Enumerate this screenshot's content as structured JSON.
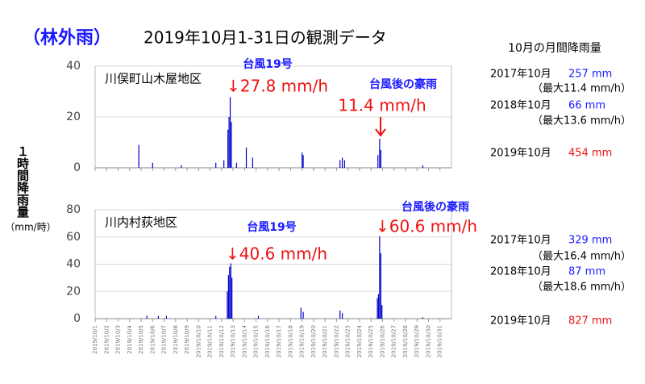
{
  "title": {
    "prefix": "（林外雨）",
    "text": "2019年10月1-31日の観測データ"
  },
  "y_axis_label": "１時間降雨量",
  "y_axis_unit": "（mm/時）",
  "chart_data": [
    {
      "type": "bar",
      "title": "川俣町山木屋地区",
      "color": "#0000cc",
      "x": [
        4.8,
        6.0,
        8.5,
        11.5,
        12.2,
        12.55,
        12.65,
        12.75,
        12.85,
        13.3,
        14.15,
        14.7,
        19.0,
        19.1,
        22.3,
        22.5,
        22.7,
        25.6,
        25.75,
        25.85,
        29.5
      ],
      "values": [
        9,
        2,
        1,
        2,
        3,
        15,
        20,
        27.8,
        18,
        2,
        8,
        4,
        6,
        5,
        3,
        4,
        3,
        5,
        11.4,
        7,
        1
      ],
      "xlim": [
        1,
        32
      ],
      "ylim": [
        0,
        40
      ],
      "yticks": [
        0,
        20,
        40
      ],
      "annotations": [
        {
          "text": "台風19号",
          "color": "#1a1aff"
        },
        {
          "text": "↓27.8 mm/h",
          "color": "#ee1111"
        },
        {
          "text": "台風後の豪雨",
          "color": "#1a1aff"
        },
        {
          "text": "11.4 mm/h",
          "color": "#ee1111"
        }
      ]
    },
    {
      "type": "bar",
      "title": "川内村荻地区",
      "color": "#0000cc",
      "x": [
        5.5,
        6.5,
        7.2,
        11.5,
        12.5,
        12.6,
        12.7,
        12.8,
        12.9,
        15.2,
        18.9,
        19.1,
        22.3,
        22.5,
        25.55,
        25.65,
        25.75,
        25.85,
        25.95,
        29.5
      ],
      "values": [
        2,
        2,
        2,
        2,
        20,
        32,
        38,
        40.6,
        30,
        2,
        8,
        5,
        6,
        4,
        15,
        18,
        60.6,
        48,
        10,
        1
      ],
      "xlim": [
        1,
        32
      ],
      "ylim": [
        0,
        80
      ],
      "yticks": [
        0,
        20,
        40,
        60,
        80
      ],
      "xticks": [
        {
          "value": 1,
          "label": "2019/10/1"
        },
        {
          "value": 2,
          "label": "2019/10/2"
        },
        {
          "value": 3,
          "label": "2019/10/3"
        },
        {
          "value": 4,
          "label": "2019/10/4"
        },
        {
          "value": 5,
          "label": "2019/10/5"
        },
        {
          "value": 6,
          "label": "2019/10/6"
        },
        {
          "value": 7,
          "label": "2019/10/7"
        },
        {
          "value": 8,
          "label": "2019/10/8"
        },
        {
          "value": 9,
          "label": "2019/10/9"
        },
        {
          "value": 10,
          "label": "2019/10/10"
        },
        {
          "value": 11,
          "label": "2019/10/11"
        },
        {
          "value": 12,
          "label": "2019/10/12"
        },
        {
          "value": 13,
          "label": "2019/10/13"
        },
        {
          "value": 14,
          "label": "2019/10/14"
        },
        {
          "value": 15,
          "label": "2019/10/15"
        },
        {
          "value": 16,
          "label": "2019/10/16"
        },
        {
          "value": 17,
          "label": "2019/10/17"
        },
        {
          "value": 18,
          "label": "2019/10/18"
        },
        {
          "value": 19,
          "label": "2019/10/19"
        },
        {
          "value": 20,
          "label": "2019/10/20"
        },
        {
          "value": 21,
          "label": "2019/10/21"
        },
        {
          "value": 22,
          "label": "2019/10/22"
        },
        {
          "value": 23,
          "label": "2019/10/23"
        },
        {
          "value": 24,
          "label": "2019/10/24"
        },
        {
          "value": 25,
          "label": "2019/10/25"
        },
        {
          "value": 26,
          "label": "2019/10/26"
        },
        {
          "value": 27,
          "label": "2019/10/27"
        },
        {
          "value": 28,
          "label": "2019/10/28"
        },
        {
          "value": 29,
          "label": "2019/10/29"
        },
        {
          "value": 30,
          "label": "2019/10/30"
        },
        {
          "value": 31,
          "label": "2019/10/31"
        }
      ],
      "annotations": [
        {
          "text": "台風19号",
          "color": "#1a1aff"
        },
        {
          "text": "↓40.6 mm/h",
          "color": "#ee1111"
        },
        {
          "text": "台風後の豪雨",
          "color": "#1a1aff"
        },
        {
          "text": "↓60.6 mm/h",
          "color": "#ee1111"
        }
      ]
    }
  ],
  "summary": {
    "title": "10月の月間降雨量",
    "panels": [
      [
        {
          "label": "2017年10月",
          "value": "257 mm",
          "max": "（最大11.4 mm/h）"
        },
        {
          "label": "2018年10月",
          "value": "66 mm",
          "max": "（最大13.6 mm/h）"
        },
        {
          "label": "2019年10月",
          "value": "454 mm"
        }
      ],
      [
        {
          "label": "2017年10月",
          "value": "329 mm",
          "max": "（最大16.4 mm/h）"
        },
        {
          "label": "2018年10月",
          "value": "87 mm",
          "max": "（最大18.6 mm/h）"
        },
        {
          "label": "2019年10月",
          "value": "827 mm"
        }
      ]
    ]
  }
}
